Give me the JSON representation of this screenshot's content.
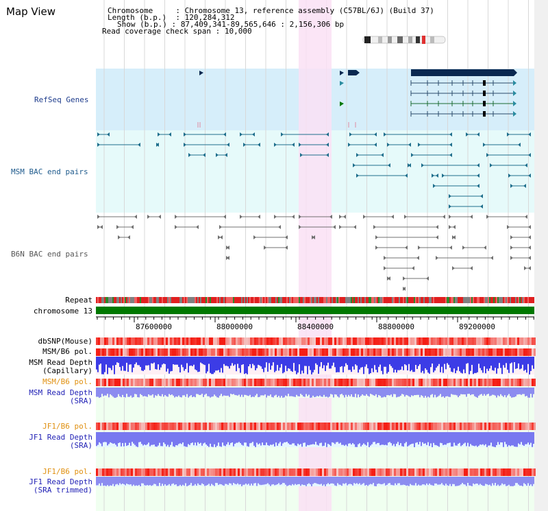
{
  "app": {
    "title": "Map View"
  },
  "info": {
    "chromosome_key": "Chromosome",
    "chromosome_value": "Chromosome 13, reference assembly (C57BL/6J) (Build 37)",
    "length_key": "Length (b.p.)",
    "length_value": "120,284,312",
    "show_key": "Show (b.p.)",
    "show_value": "87,409,341-89,565,646 : 2,156,306 bp",
    "coverage_key": "Read coverage check span",
    "coverage_value": "10,000"
  },
  "tracks": {
    "refseq": "RefSeq Genes",
    "msm_bac": "MSM BAC end pairs",
    "b6n_bac": "B6N BAC end pairs",
    "repeat": "Repeat",
    "chromosome": "chromosome 13",
    "dbsnp": "dbSNP(Mouse)",
    "msm_b6_pol_1": "MSM/B6 pol.",
    "msm_read_depth_cap_1": "MSM Read Depth",
    "msm_read_depth_cap_2": "(Capillary)",
    "msm_b6_pol_2": "MSM/B6 pol.",
    "msm_read_depth_sra_1": "MSM Read Depth",
    "msm_read_depth_sra_2": "(SRA)",
    "jf1_b6_pol_1": "JF1/B6 pol.",
    "jf1_read_depth_1": "JF1 Read Depth",
    "jf1_read_depth_2": "(SRA)",
    "jf1_b6_pol_2": "JF1/B6 pol.",
    "jf1_read_depth_trim_1": "JF1 Read Depth",
    "jf1_read_depth_trim_2": "(SRA trimmed)"
  },
  "axis": {
    "ticks": [
      "87600000",
      "88000000",
      "88400000",
      "88800000",
      "89200000"
    ]
  },
  "colors": {
    "refseq_bg": "#d6eefa",
    "msm_bg": "#e6fafa",
    "highlight": "#fae0f5",
    "chromosome_bar": "#007800",
    "depth_bar": "#4646e6",
    "sra_bar": "#8c8cf0"
  }
}
